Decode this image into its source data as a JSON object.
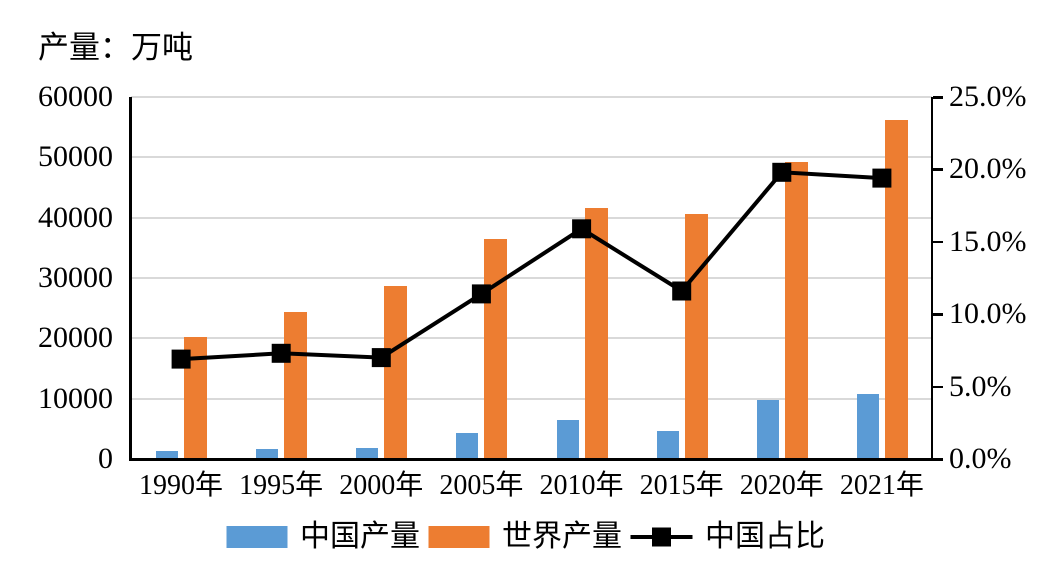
{
  "chart_data": {
    "type": "bar",
    "subtype": "grouped-bars-with-line-overlay",
    "title": "产量：万吨",
    "categories": [
      "1990年",
      "1995年",
      "2000年",
      "2005年",
      "2010年",
      "2015年",
      "2020年",
      "2021年"
    ],
    "series": [
      {
        "name": "中国产量",
        "type": "bar",
        "axis": "left",
        "color": "#5b9bd5",
        "values": [
          1400,
          1700,
          1900,
          4300,
          6500,
          4700,
          9700,
          10800
        ]
      },
      {
        "name": "世界产量",
        "type": "bar",
        "axis": "left",
        "color": "#ed7d31",
        "values": [
          20300,
          24300,
          28700,
          36500,
          41600,
          40600,
          49300,
          56200
        ]
      },
      {
        "name": "中国占比",
        "type": "line",
        "axis": "right",
        "color": "#000000",
        "marker": "square",
        "values": [
          6.9,
          7.3,
          7.0,
          11.4,
          15.9,
          11.6,
          19.8,
          19.4
        ]
      }
    ],
    "left_axis": {
      "min": 0,
      "max": 60000,
      "interval": 10000,
      "ticks": [
        "0",
        "10000",
        "20000",
        "30000",
        "40000",
        "50000",
        "60000"
      ]
    },
    "right_axis": {
      "min": 0,
      "max": 25,
      "interval": 5,
      "ticks": [
        "0.0%",
        "5.0%",
        "10.0%",
        "15.0%",
        "20.0%",
        "25.0%"
      ]
    },
    "gridlines": "horizontal-left-axis-only",
    "gridline_color": "#d9d9d9",
    "legend_position": "bottom"
  }
}
